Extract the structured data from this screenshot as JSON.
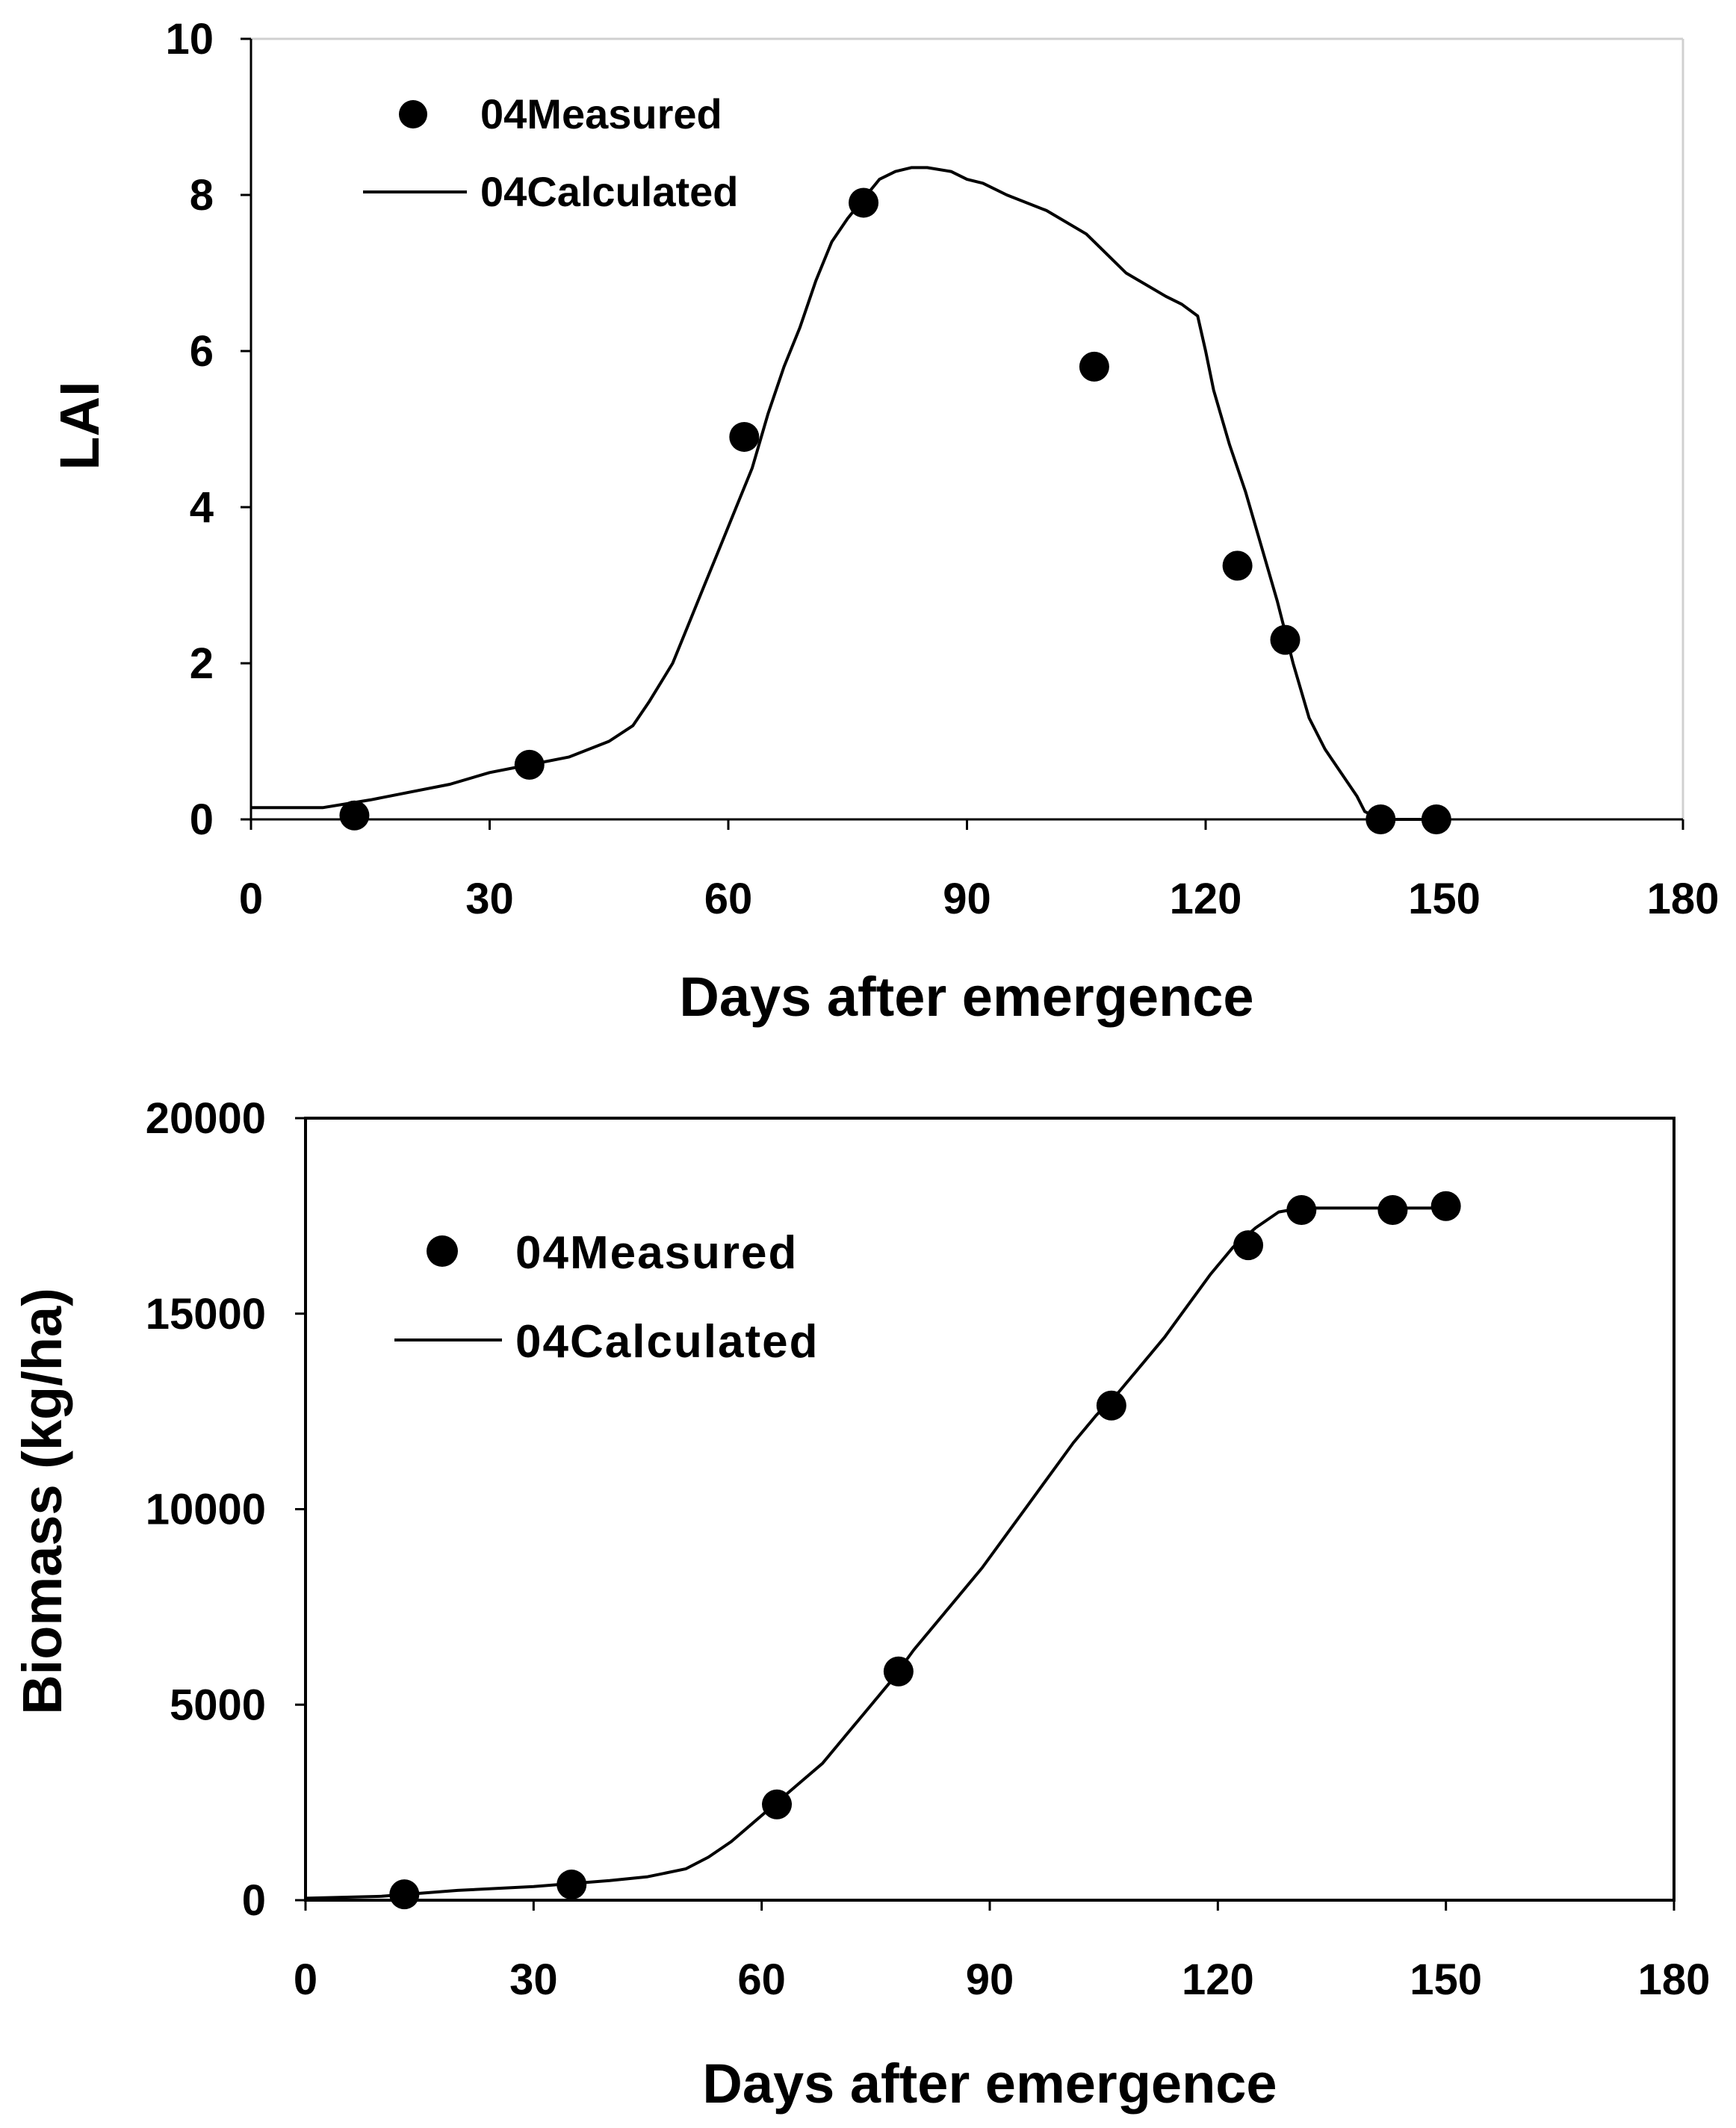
{
  "chart_data": [
    {
      "type": "scatter+line",
      "xlabel": "Days after emergence",
      "ylabel": "LAI",
      "xlim": [
        0,
        180
      ],
      "ylim": [
        0,
        10
      ],
      "xticks": [
        0,
        30,
        60,
        90,
        120,
        150,
        180
      ],
      "yticks": [
        0,
        2,
        4,
        6,
        8,
        10
      ],
      "xtick_labels": [
        "0",
        "30",
        "60",
        "90",
        "120",
        "150",
        "180"
      ],
      "ytick_labels": [
        "0",
        "2",
        "4",
        "6",
        "8",
        "10"
      ],
      "frame": "left-bottom",
      "legend_position": "top-left",
      "series": [
        {
          "name": "04Measured",
          "kind": "scatter",
          "x": [
            13,
            35,
            62,
            77,
            106,
            124,
            130,
            142,
            149
          ],
          "y": [
            0.05,
            0.7,
            4.9,
            7.9,
            5.8,
            3.25,
            2.3,
            0.0,
            0.0
          ]
        },
        {
          "name": "04Calculated",
          "kind": "line",
          "x": [
            0,
            9,
            15,
            20,
            25,
            30,
            35,
            40,
            45,
            48,
            50,
            53,
            55,
            57,
            59,
            61,
            63,
            65,
            67,
            69,
            71,
            73,
            75,
            77,
            79,
            81,
            83,
            85,
            88,
            90,
            92,
            95,
            100,
            105,
            110,
            115,
            117,
            119,
            120,
            121,
            123,
            125,
            127,
            129,
            131,
            133,
            135,
            137,
            139,
            140,
            141,
            142,
            145,
            150
          ],
          "y": [
            0.15,
            0.15,
            0.25,
            0.35,
            0.45,
            0.6,
            0.7,
            0.8,
            1.0,
            1.2,
            1.5,
            2.0,
            2.5,
            3.0,
            3.5,
            4.0,
            4.5,
            5.2,
            5.8,
            6.3,
            6.9,
            7.4,
            7.7,
            7.95,
            8.2,
            8.3,
            8.35,
            8.35,
            8.3,
            8.2,
            8.15,
            8.0,
            7.8,
            7.5,
            7.0,
            6.7,
            6.6,
            6.45,
            6.0,
            5.5,
            4.8,
            4.2,
            3.5,
            2.8,
            2.0,
            1.3,
            0.9,
            0.6,
            0.3,
            0.1,
            0.05,
            0.0,
            0.0,
            0.0
          ]
        }
      ]
    },
    {
      "type": "scatter+line",
      "xlabel": "Days after emergence",
      "ylabel": "Biomass (kg/ha)",
      "xlim": [
        0,
        180
      ],
      "ylim": [
        0,
        20000
      ],
      "xticks": [
        0,
        30,
        60,
        90,
        120,
        150,
        180
      ],
      "yticks": [
        0,
        5000,
        10000,
        15000,
        20000
      ],
      "xtick_labels": [
        "0",
        "30",
        "60",
        "90",
        "120",
        "150",
        "180"
      ],
      "ytick_labels": [
        "0",
        "5000",
        "10000",
        "15000",
        "20000"
      ],
      "frame": "box",
      "legend_position": "top-left",
      "series": [
        {
          "name": "04Measured",
          "kind": "scatter",
          "x": [
            13,
            35,
            62,
            78,
            106,
            124,
            131,
            143,
            150
          ],
          "y": [
            150,
            400,
            2450,
            5850,
            12650,
            16750,
            17650,
            17650,
            17750
          ]
        },
        {
          "name": "04Calculated",
          "kind": "line",
          "x": [
            0,
            10,
            20,
            30,
            40,
            45,
            50,
            53,
            56,
            59,
            62,
            65,
            68,
            71,
            74,
            77,
            80,
            83,
            86,
            89,
            92,
            95,
            98,
            101,
            104,
            107,
            110,
            113,
            116,
            119,
            122,
            125,
            128,
            131,
            135,
            140,
            150
          ],
          "y": [
            50,
            100,
            250,
            350,
            500,
            600,
            800,
            1100,
            1500,
            2000,
            2500,
            3000,
            3500,
            4200,
            4900,
            5600,
            6400,
            7100,
            7800,
            8500,
            9300,
            10100,
            10900,
            11700,
            12400,
            13000,
            13700,
            14400,
            15200,
            16000,
            16700,
            17200,
            17600,
            17700,
            17700,
            17700,
            17700
          ]
        }
      ]
    }
  ]
}
